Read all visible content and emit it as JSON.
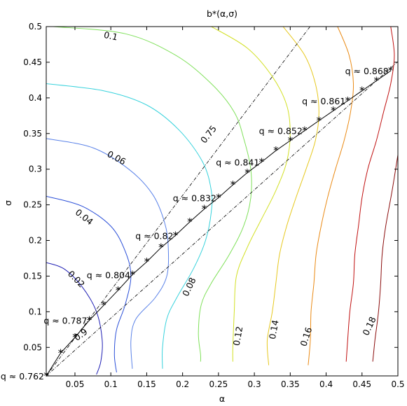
{
  "chart_data": {
    "type": "line",
    "title": "b*(α,σ)",
    "xlabel": "α",
    "ylabel": "σ",
    "xlim": [
      0.01,
      0.5
    ],
    "ylim": [
      0.01,
      0.5
    ],
    "x_ticks": [
      "0.05",
      "0.1",
      "0.15",
      "0.2",
      "0.25",
      "0.3",
      "0.35",
      "0.4",
      "0.45",
      "0.5"
    ],
    "y_ticks": [
      "0.05",
      "0.1",
      "0.15",
      "0.2",
      "0.25",
      "0.3",
      "0.35",
      "0.4",
      "0.45",
      "0.5"
    ],
    "grid": false,
    "contours": [
      {
        "level": "0.02",
        "color": "#1f1fb4",
        "points": [
          [
            0.01,
            0.169
          ],
          [
            0.035,
            0.16
          ],
          [
            0.06,
            0.135
          ],
          [
            0.08,
            0.1
          ],
          [
            0.088,
            0.06
          ],
          [
            0.086,
            0.03
          ],
          [
            0.08,
            0.012
          ]
        ],
        "label": "0.02",
        "label_at": [
          0.052,
          0.146
        ],
        "label_angle": 45
      },
      {
        "level": "0.04",
        "color": "#2a4fd8",
        "points": [
          [
            0.01,
            0.262
          ],
          [
            0.06,
            0.248
          ],
          [
            0.1,
            0.22
          ],
          [
            0.12,
            0.185
          ],
          [
            0.128,
            0.15
          ],
          [
            0.12,
            0.11
          ],
          [
            0.108,
            0.075
          ],
          [
            0.105,
            0.04
          ],
          [
            0.108,
            0.015
          ]
        ],
        "label": "0.04",
        "label_at": [
          0.063,
          0.233
        ],
        "label_angle": 38
      },
      {
        "level": "0.06",
        "color": "#5a82e8",
        "points": [
          [
            0.01,
            0.343
          ],
          [
            0.075,
            0.33
          ],
          [
            0.125,
            0.3
          ],
          [
            0.158,
            0.265
          ],
          [
            0.175,
            0.225
          ],
          [
            0.18,
            0.19
          ],
          [
            0.178,
            0.15
          ],
          [
            0.162,
            0.12
          ],
          [
            0.135,
            0.09
          ],
          [
            0.128,
            0.06
          ],
          [
            0.13,
            0.02
          ]
        ],
        "label": "0.06",
        "label_at": [
          0.108,
          0.316
        ],
        "label_angle": 28
      },
      {
        "level": "0.08",
        "color": "#37d2dc",
        "points": [
          [
            0.01,
            0.42
          ],
          [
            0.09,
            0.41
          ],
          [
            0.15,
            0.39
          ],
          [
            0.195,
            0.355
          ],
          [
            0.228,
            0.31
          ],
          [
            0.24,
            0.27
          ],
          [
            0.24,
            0.24
          ],
          [
            0.232,
            0.2
          ],
          [
            0.215,
            0.16
          ],
          [
            0.192,
            0.12
          ],
          [
            0.178,
            0.09
          ],
          [
            0.172,
            0.05
          ],
          [
            0.172,
            0.02
          ]
        ],
        "label": "0.08",
        "label_at": [
          0.209,
          0.135
        ],
        "label_angle": -65
      },
      {
        "level": "0.1",
        "color": "#7fe05a",
        "points": [
          [
            0.02,
            0.5
          ],
          [
            0.12,
            0.49
          ],
          [
            0.19,
            0.46
          ],
          [
            0.24,
            0.42
          ],
          [
            0.272,
            0.38
          ],
          [
            0.286,
            0.34
          ],
          [
            0.295,
            0.3
          ],
          [
            0.295,
            0.26
          ],
          [
            0.285,
            0.22
          ],
          [
            0.265,
            0.18
          ],
          [
            0.24,
            0.14
          ],
          [
            0.226,
            0.11
          ],
          [
            0.222,
            0.07
          ],
          [
            0.225,
            0.04
          ],
          [
            0.225,
            0.03
          ]
        ],
        "label": "0.1",
        "label_at": [
          0.1,
          0.487
        ],
        "label_angle": 12
      },
      {
        "level": "0.12",
        "color": "#d2e024",
        "points": [
          [
            0.24,
            0.5
          ],
          [
            0.29,
            0.47
          ],
          [
            0.325,
            0.43
          ],
          [
            0.345,
            0.39
          ],
          [
            0.35,
            0.35
          ],
          [
            0.345,
            0.31
          ],
          [
            0.33,
            0.27
          ],
          [
            0.31,
            0.23
          ],
          [
            0.29,
            0.19
          ],
          [
            0.275,
            0.15
          ],
          [
            0.272,
            0.1
          ],
          [
            0.27,
            0.05
          ],
          [
            0.27,
            0.03
          ]
        ],
        "label": "0.12",
        "label_at": [
          0.277,
          0.066
        ],
        "label_angle": -80
      },
      {
        "level": "0.14",
        "color": "#e6c81e",
        "points": [
          [
            0.34,
            0.5
          ],
          [
            0.37,
            0.46
          ],
          [
            0.385,
            0.42
          ],
          [
            0.39,
            0.38
          ],
          [
            0.385,
            0.34
          ],
          [
            0.372,
            0.3
          ],
          [
            0.358,
            0.26
          ],
          [
            0.345,
            0.22
          ],
          [
            0.335,
            0.18
          ],
          [
            0.33,
            0.14
          ],
          [
            0.325,
            0.1
          ],
          [
            0.318,
            0.06
          ],
          [
            0.32,
            0.025
          ]
        ],
        "label": "0.14",
        "label_at": [
          0.327,
          0.075
        ],
        "label_angle": -80
      },
      {
        "level": "0.16",
        "color": "#ea8a14",
        "points": [
          [
            0.416,
            0.5
          ],
          [
            0.432,
            0.46
          ],
          [
            0.438,
            0.42
          ],
          [
            0.434,
            0.38
          ],
          [
            0.425,
            0.34
          ],
          [
            0.413,
            0.3
          ],
          [
            0.402,
            0.26
          ],
          [
            0.393,
            0.22
          ],
          [
            0.386,
            0.18
          ],
          [
            0.383,
            0.14
          ],
          [
            0.379,
            0.1
          ],
          [
            0.378,
            0.06
          ],
          [
            0.375,
            0.025
          ]
        ],
        "label": "0.16",
        "label_at": [
          0.372,
          0.065
        ],
        "label_angle": -72
      },
      {
        "level": "0.18",
        "color": "#c01010",
        "points": [
          [
            0.49,
            0.5
          ],
          [
            0.495,
            0.46
          ],
          [
            0.49,
            0.42
          ],
          [
            0.48,
            0.38
          ],
          [
            0.47,
            0.34
          ],
          [
            0.458,
            0.3
          ],
          [
            0.45,
            0.26
          ],
          [
            0.445,
            0.22
          ],
          [
            0.44,
            0.18
          ],
          [
            0.438,
            0.14
          ],
          [
            0.433,
            0.1
          ],
          [
            0.43,
            0.06
          ],
          [
            0.428,
            0.03
          ]
        ],
        "label": "0.18",
        "label_at": [
          0.46,
          0.08
        ],
        "label_angle": -65
      },
      {
        "level": "0.2",
        "color": "#8a0b0b",
        "points": [
          [
            0.5,
            0.32
          ],
          [
            0.492,
            0.27
          ],
          [
            0.483,
            0.22
          ],
          [
            0.478,
            0.18
          ],
          [
            0.476,
            0.14
          ],
          [
            0.473,
            0.1
          ],
          [
            0.468,
            0.06
          ],
          [
            0.465,
            0.03
          ]
        ],
        "label": "",
        "label_at": [
          0,
          0
        ],
        "label_angle": 0
      }
    ],
    "reference_lines": [
      {
        "label": "0.75",
        "slope": 1.333,
        "label_at": [
          0.236,
          0.349
        ],
        "label_angle": -52
      },
      {
        "label": "0.9",
        "slope": 0.9,
        "label_at": [
          0.058,
          0.068
        ],
        "label_angle": -36
      }
    ],
    "optimal_path": {
      "x": [
        0.01,
        0.03,
        0.05,
        0.07,
        0.09,
        0.11,
        0.13,
        0.15,
        0.17,
        0.19,
        0.21,
        0.23,
        0.25,
        0.27,
        0.29,
        0.31,
        0.33,
        0.35,
        0.37,
        0.39,
        0.41,
        0.43,
        0.45,
        0.47,
        0.49
      ],
      "y": [
        0.01,
        0.042,
        0.064,
        0.088,
        0.109,
        0.13,
        0.152,
        0.17,
        0.19,
        0.207,
        0.226,
        0.244,
        0.26,
        0.278,
        0.295,
        0.31,
        0.326,
        0.34,
        0.354,
        0.368,
        0.382,
        0.396,
        0.41,
        0.424,
        0.438
      ]
    },
    "q_annotations": [
      {
        "text": "q ≈ 0.762",
        "at": [
          0.01,
          0.01
        ]
      },
      {
        "text": "q ≈ 0.787",
        "at": [
          0.07,
          0.088
        ]
      },
      {
        "text": "q ≈ 0.804",
        "at": [
          0.13,
          0.152
        ]
      },
      {
        "text": "q ≈ 0.82",
        "at": [
          0.19,
          0.207
        ]
      },
      {
        "text": "q ≈ 0.832",
        "at": [
          0.25,
          0.26
        ]
      },
      {
        "text": "q ≈ 0.841",
        "at": [
          0.31,
          0.31
        ]
      },
      {
        "text": "q ≈ 0.852",
        "at": [
          0.37,
          0.354
        ]
      },
      {
        "text": "q ≈ 0.861",
        "at": [
          0.43,
          0.396
        ]
      },
      {
        "text": "q ≈ 0.868",
        "at": [
          0.49,
          0.438
        ]
      }
    ]
  }
}
